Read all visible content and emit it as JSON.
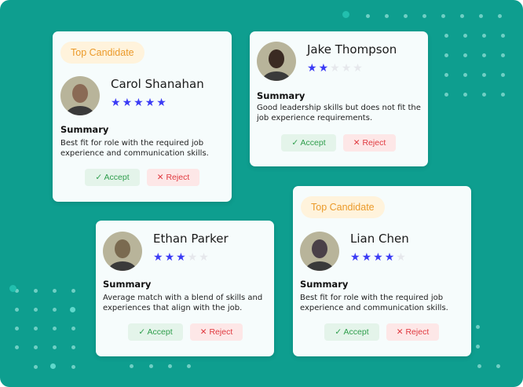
{
  "colors": {
    "background": "#0e9e8f",
    "card": "#f6fcfc",
    "star": "#3b3bf5",
    "badge_text": "#eb9a2a",
    "accept": "#2f9e4c",
    "reject": "#e0393f"
  },
  "labels": {
    "summary": "Summary",
    "accept": "Accept",
    "reject": "Reject",
    "accept_icon": "check-icon",
    "reject_icon": "x-icon"
  },
  "candidates": [
    {
      "name": "Carol Shanahan",
      "badge": "Top Candidate",
      "rating": 5,
      "summary": "Best fit for role with the required job experience and communication skills."
    },
    {
      "name": "Jake Thompson",
      "badge": "",
      "rating": 2,
      "summary": "Good leadership skills but does not fit the job experience requirements."
    },
    {
      "name": "Ethan Parker",
      "badge": "",
      "rating": 3,
      "summary": "Average match with a blend of skills and experiences that align with the job."
    },
    {
      "name": "Lian Chen",
      "badge": "Top Candidate",
      "rating": 4,
      "summary": "Best fit for role with the required job experience and communication skills."
    }
  ]
}
